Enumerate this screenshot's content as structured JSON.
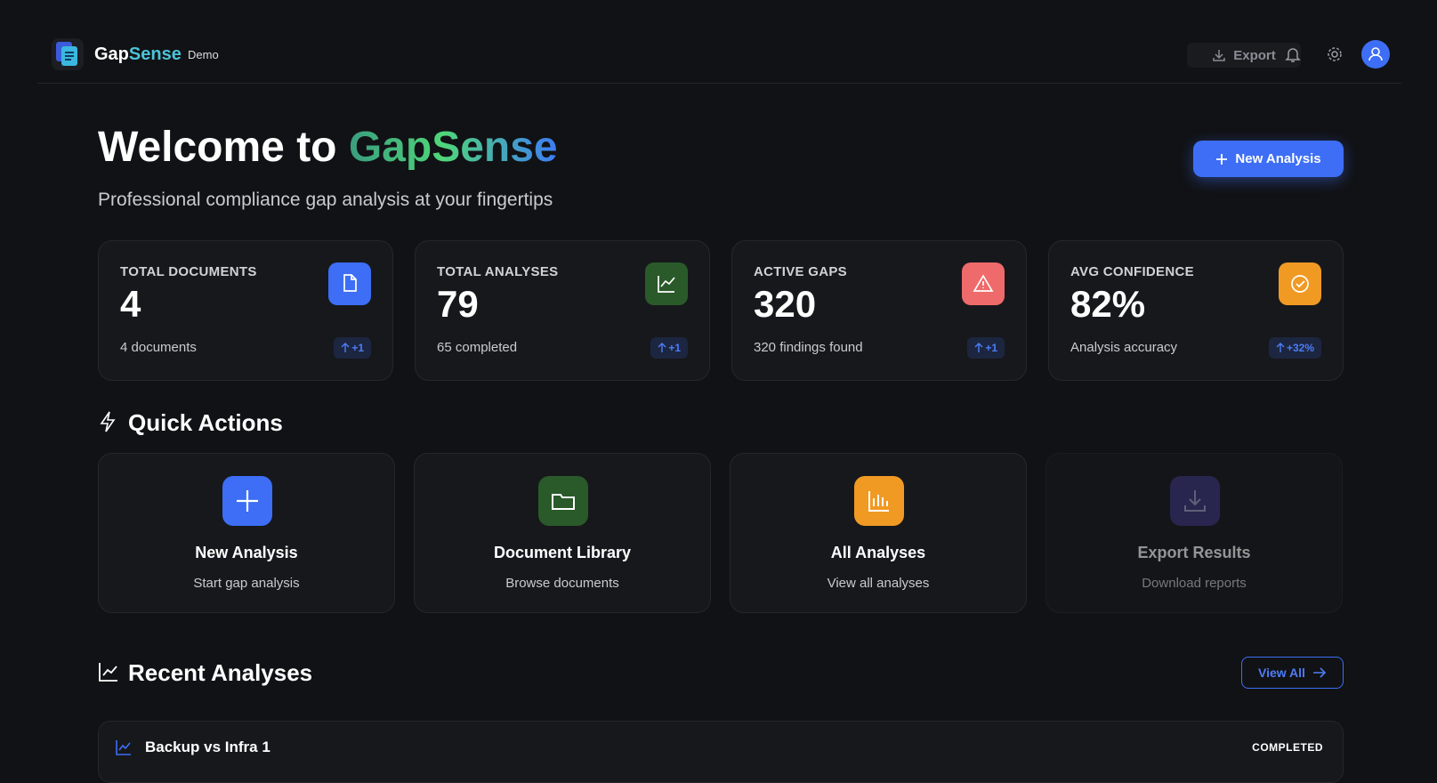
{
  "header": {
    "brand_1": "Gap",
    "brand_2": "Sense",
    "badge": "Demo",
    "export": "Export"
  },
  "welcome": {
    "title_1": "Welcome to",
    "title_2": "GapSense",
    "subtitle": "Professional compliance gap analysis at your fingertips",
    "button": "New Analysis"
  },
  "stats": [
    {
      "label": "TOTAL DOCUMENTS",
      "value": "4",
      "note": "4 documents",
      "delta": "+1"
    },
    {
      "label": "TOTAL ANALYSES",
      "value": "79",
      "note": "65 completed",
      "delta": "+1"
    },
    {
      "label": "ACTIVE GAPS",
      "value": "320",
      "note": "320 findings found",
      "delta": "+1"
    },
    {
      "label": "AVG CONFIDENCE",
      "value": "82%",
      "note": "Analysis accuracy",
      "delta": "+32%"
    }
  ],
  "quick_actions": {
    "title": "Quick Actions",
    "items": [
      {
        "title": "New Analysis",
        "subtitle": "Start gap analysis"
      },
      {
        "title": "Document Library",
        "subtitle": "Browse documents"
      },
      {
        "title": "All Analyses",
        "subtitle": "View all analyses"
      },
      {
        "title": "Export Results",
        "subtitle": "Download reports"
      }
    ]
  },
  "recent": {
    "title": "Recent Analyses",
    "button": "View All",
    "rows": [
      {
        "name": "Backup vs Infra 1",
        "status": "COMPLETED"
      }
    ]
  }
}
